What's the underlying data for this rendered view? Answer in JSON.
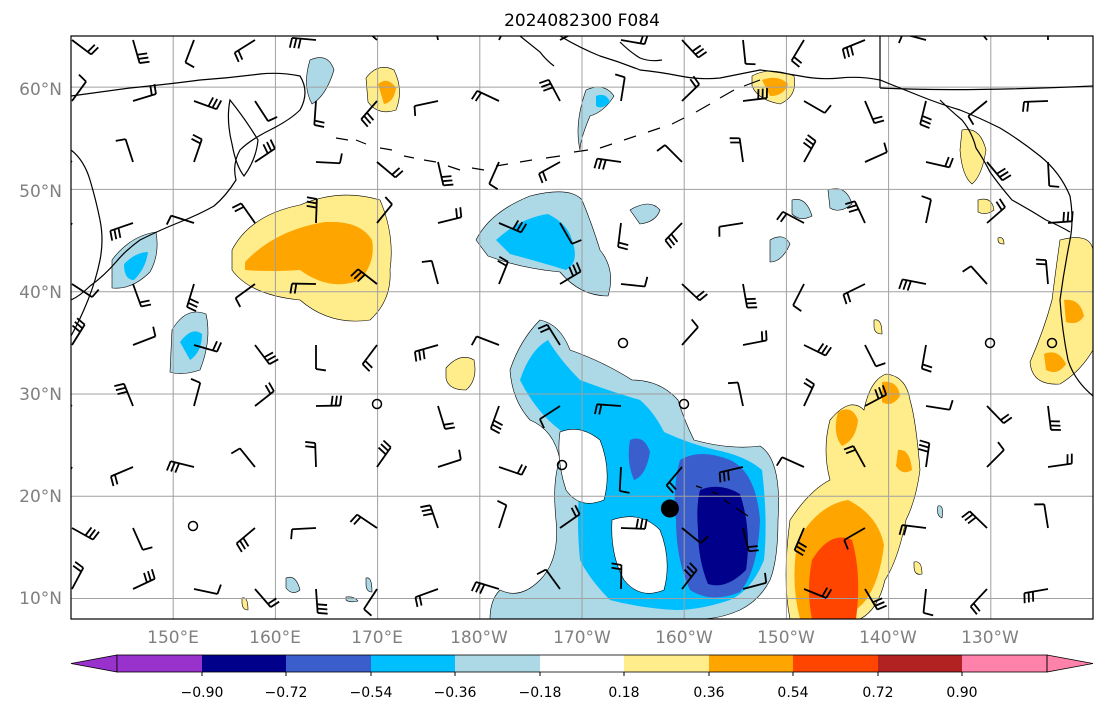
{
  "title": "2024082300 F084",
  "lat_labels": [
    "60°N",
    "50°N",
    "40°N",
    "30°N",
    "20°N",
    "10°N"
  ],
  "lon_labels": [
    "150°E",
    "160°E",
    "170°E",
    "180°W",
    "170°W",
    "160°W",
    "150°W",
    "140°W",
    "130°W"
  ],
  "colorbar": {
    "ticks": [
      "−0.90",
      "−0.72",
      "−0.54",
      "−0.36",
      "−0.18",
      "0.18",
      "0.36",
      "0.54",
      "0.72",
      "0.90"
    ],
    "colors": [
      "#9932cc",
      "#00008b",
      "#3a5fcd",
      "#00bfff",
      "#add8e6",
      "#ffffff",
      "#ffec8b",
      "#ffa500",
      "#ff4500",
      "#b22222",
      "#ff82ab"
    ]
  },
  "colors": {
    "coast": "#000000",
    "grid": "#a0a0a0",
    "barb": "#000000"
  },
  "map": {
    "lat_range": [
      8,
      65
    ],
    "lon_range": [
      140,
      240
    ],
    "marker": {
      "lon": 198.6,
      "lat": 18.8
    }
  }
}
